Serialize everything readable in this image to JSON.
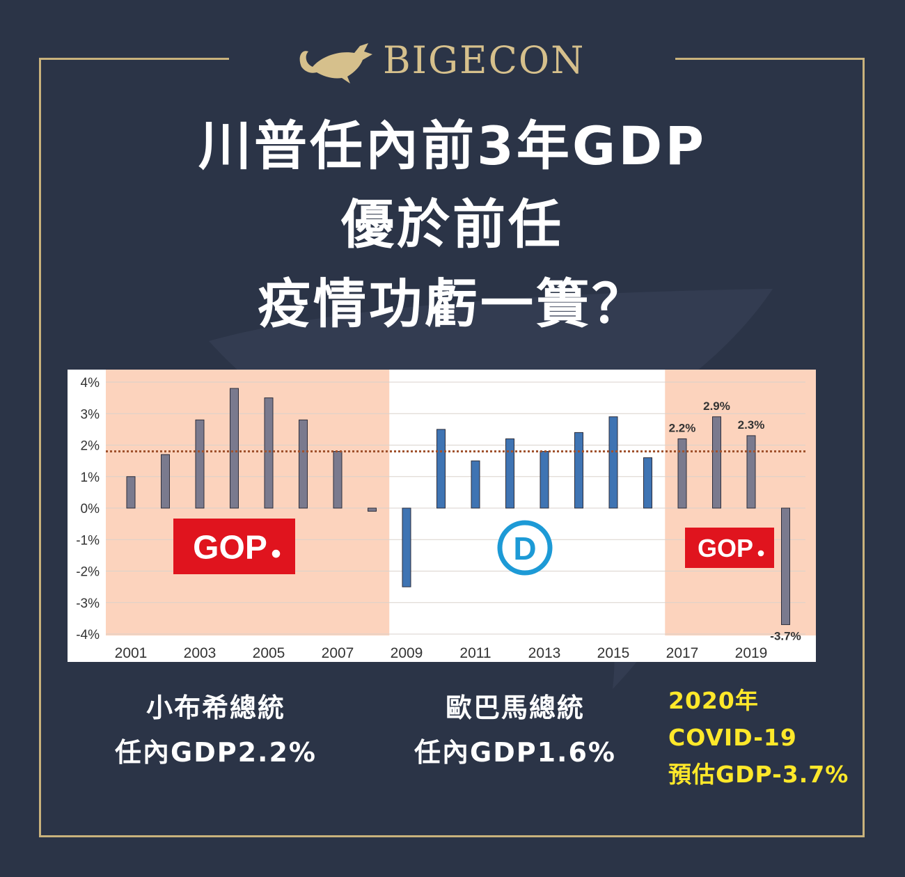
{
  "brand": {
    "name": "BIGECON"
  },
  "title": {
    "line1": "川普任內前3年GDP",
    "line2": "優於前任",
    "line3": "疫情功虧一簣？"
  },
  "chart_data": {
    "type": "bar",
    "ylim": [
      -4,
      4
    ],
    "y_ticks": [
      "4%",
      "3%",
      "2%",
      "1%",
      "0%",
      "-1%",
      "-2%",
      "-3%",
      "-4%"
    ],
    "x_tick_labels": [
      "2001",
      "2003",
      "2005",
      "2007",
      "2009",
      "2011",
      "2013",
      "2015",
      "2017",
      "2019"
    ],
    "categories": [
      "2001",
      "2002",
      "2003",
      "2004",
      "2005",
      "2006",
      "2007",
      "2008",
      "2009",
      "2010",
      "2011",
      "2012",
      "2013",
      "2014",
      "2015",
      "2016",
      "2017",
      "2018",
      "2019",
      "2020"
    ],
    "values": [
      1.0,
      1.7,
      2.8,
      3.8,
      3.5,
      2.8,
      1.8,
      -0.1,
      -2.5,
      2.5,
      1.5,
      2.2,
      1.8,
      2.4,
      2.9,
      1.6,
      2.2,
      2.9,
      2.3,
      -3.7
    ],
    "party": [
      "R",
      "R",
      "R",
      "R",
      "R",
      "R",
      "R",
      "R",
      "D",
      "D",
      "D",
      "D",
      "D",
      "D",
      "D",
      "D",
      "R",
      "R",
      "R",
      "R"
    ],
    "average_line": 1.8,
    "data_labels": [
      {
        "year": "2017",
        "text": "2.2%"
      },
      {
        "year": "2018",
        "text": "2.9%"
      },
      {
        "year": "2019",
        "text": "2.3%"
      },
      {
        "year": "2020",
        "text": "-3.7%"
      }
    ],
    "gop_logo_text": "GOP",
    "dem_logo_text": "D",
    "colors": {
      "gop_shade": "#fcd3bd",
      "gop_bar": "#7a7a8e",
      "dem_bar": "#3f74b3",
      "avg_line": "#a0522d",
      "gop_logo": "#e0141e",
      "dem_logo": "#1d9ad6"
    }
  },
  "captions": {
    "bush": {
      "line1": "小布希總統",
      "line2": "任內GDP2.2%"
    },
    "obama": {
      "line1": "歐巴馬總統",
      "line2": "任內GDP1.6%"
    },
    "covid": {
      "line1": "2020年",
      "line2": "COVID-19",
      "line3": "預估GDP-3.7%"
    }
  }
}
